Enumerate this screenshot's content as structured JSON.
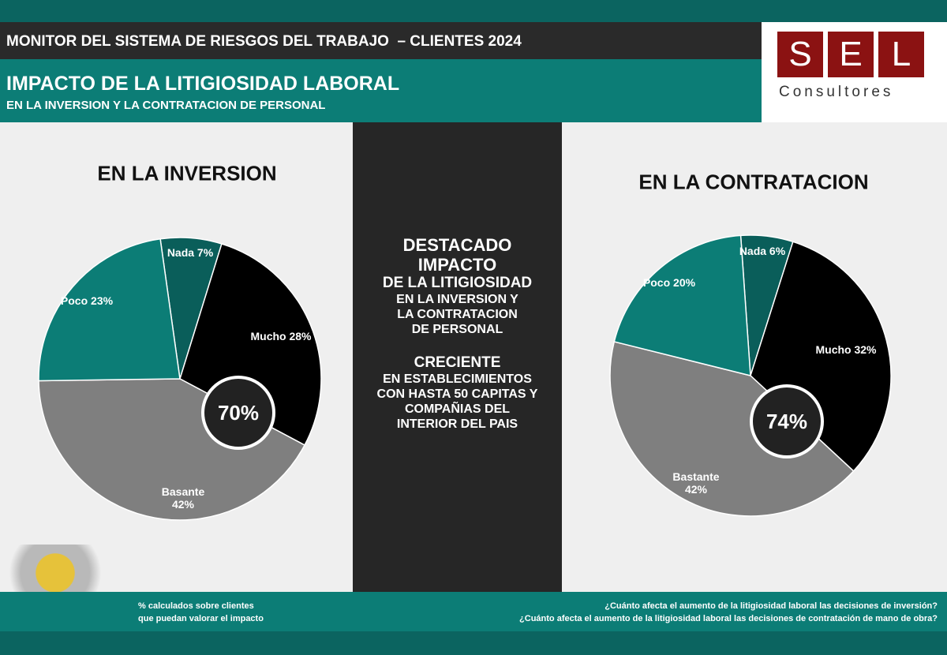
{
  "header": {
    "title": "MONITOR DEL SISTEMA DE RIESGOS DEL TRABAJO  – CLIENTES 2024",
    "subtitle": "IMPACTO DE LA LITIGIOSIDAD LABORAL",
    "subtitle2": "EN LA INVERSION Y LA CONTRATACION DE PERSONAL",
    "logo_letters": [
      "S",
      "E",
      "L"
    ],
    "logo_text": "Consultores"
  },
  "chart_data": [
    {
      "type": "pie",
      "title": "EN LA INVERSION",
      "values": [
        7,
        28,
        42,
        23
      ],
      "value_labels": [
        "Nada 7%",
        "Mucho 28%",
        "Basante 42%",
        "Poco 23%"
      ],
      "colors": [
        "#0a5e5a",
        "#000000",
        "#7f7f7f",
        "#0c7d76"
      ],
      "center_label": "70%"
    },
    {
      "type": "pie",
      "title": "EN LA CONTRATACION",
      "values": [
        6,
        32,
        42,
        20
      ],
      "value_labels": [
        "Nada 6%",
        "Mucho 32%",
        "Bastante 42%",
        "Poco 20%"
      ],
      "colors": [
        "#0a5e5a",
        "#000000",
        "#7f7f7f",
        "#0c7d76"
      ],
      "center_label": "74%"
    }
  ],
  "center": {
    "lines": [
      "DESTACADO",
      "IMPACTO",
      "DE LA LITIGIOSIDAD",
      "EN LA INVERSION Y",
      "LA CONTRATACION",
      "DE PERSONAL",
      "CRECIENTE",
      "EN ESTABLECIMIENTOS",
      "CON HASTA 50 CAPITAS Y",
      "COMPAÑIAS DEL",
      "INTERIOR DEL PAIS"
    ]
  },
  "footer": {
    "note": [
      "% calculados sobre clientes",
      "que puedan valorar el impacto"
    ],
    "questions": [
      "¿Cuánto afecta el aumento de la litigiosidad laboral las decisiones de inversión?",
      "¿Cuánto afecta el aumento de la litigiosidad laboral las decisiones de contratación de mano de obra?"
    ]
  }
}
